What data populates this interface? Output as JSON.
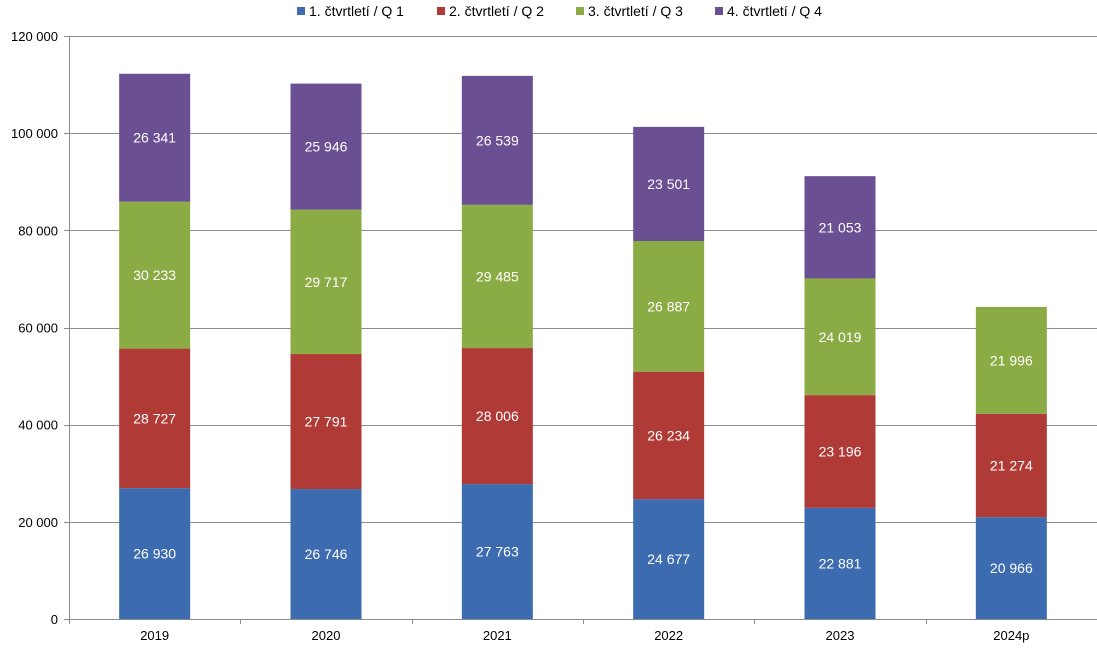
{
  "chart_data": {
    "type": "bar",
    "stacked": true,
    "categories": [
      "2019",
      "2020",
      "2021",
      "2022",
      "2023",
      "2024p"
    ],
    "series": [
      {
        "name": "1. čtvrtletí / Q 1",
        "color": "#3C6BB0",
        "values": [
          26930,
          26746,
          27763,
          24677,
          22881,
          20966
        ],
        "labels": [
          "26 930",
          "26 746",
          "27 763",
          "24 677",
          "22 881",
          "20 966"
        ]
      },
      {
        "name": "2. čtvrtletí / Q 2",
        "color": "#B03A36",
        "values": [
          28727,
          27791,
          28006,
          26234,
          23196,
          21274
        ],
        "labels": [
          "28 727",
          "27 791",
          "28 006",
          "26 234",
          "23 196",
          "21 274"
        ]
      },
      {
        "name": "3. čtvrtletí / Q 3",
        "color": "#8BAB45",
        "values": [
          30233,
          29717,
          29485,
          26887,
          24019,
          21996
        ],
        "labels": [
          "30 233",
          "29 717",
          "29 485",
          "26 887",
          "24 019",
          "21 996"
        ]
      },
      {
        "name": "4. čtvrtletí / Q 4",
        "color": "#6A4F93",
        "values": [
          26341,
          25946,
          26539,
          23501,
          21053,
          null
        ],
        "labels": [
          "26 341",
          "25 946",
          "26 539",
          "23 501",
          "21 053",
          ""
        ]
      }
    ],
    "ylim": [
      0,
      120000
    ],
    "yticks": [
      0,
      20000,
      40000,
      60000,
      80000,
      100000,
      120000
    ],
    "ytick_labels": [
      "0",
      "20 000",
      "40 000",
      "60 000",
      "80 000",
      "100 000",
      "120 000"
    ],
    "grid": true,
    "legend_position": "top"
  }
}
